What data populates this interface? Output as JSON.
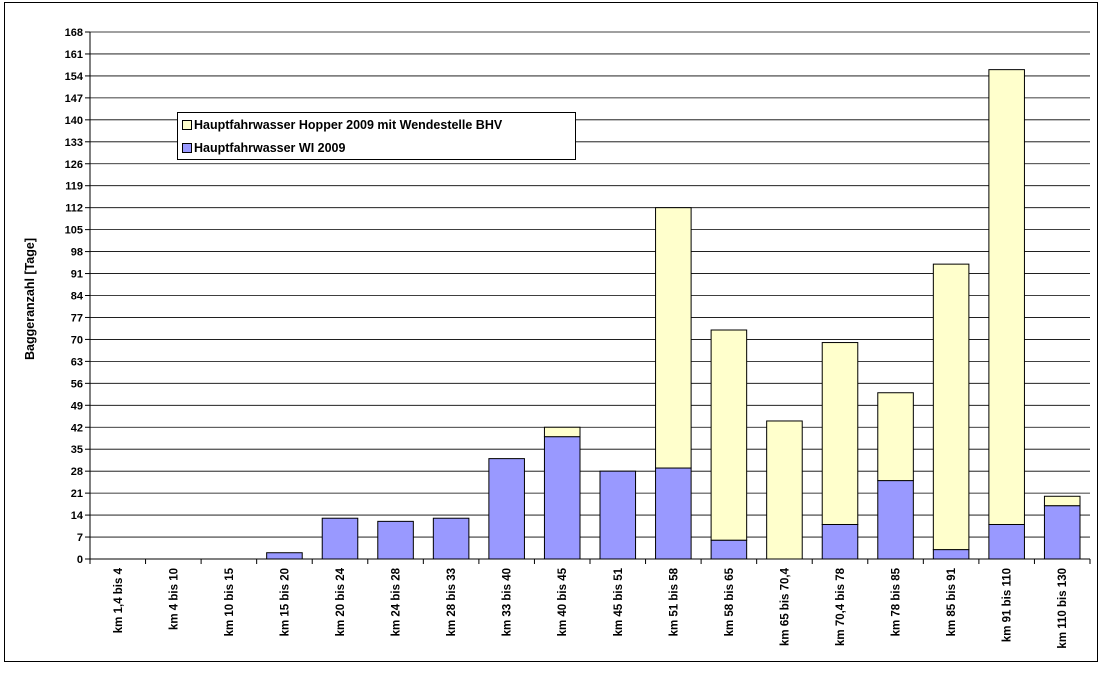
{
  "chart_data": {
    "type": "bar",
    "stacked": true,
    "title": "",
    "xlabel": "",
    "ylabel": "Baggeranzahl [Tage]",
    "ylim": [
      0,
      168
    ],
    "yticks": [
      0,
      7,
      14,
      21,
      28,
      35,
      42,
      49,
      56,
      63,
      70,
      77,
      84,
      91,
      98,
      105,
      112,
      119,
      126,
      133,
      140,
      147,
      154,
      161,
      168
    ],
    "grid": true,
    "legend_position": "top-left",
    "categories": [
      "km 1,4 bis 4",
      "km 4 bis 10",
      "km 10 bis 15",
      "km 15 bis 20",
      "km 20 bis 24",
      "km 24 bis 28",
      "km 28 bis 33",
      "km 33 bis 40",
      "km 40 bis 45",
      "km 45 bis 51",
      "km 51 bis 58",
      "km 58 bis 65",
      "km 65 bis 70,4",
      "km 70,4 bis 78",
      "km 78 bis 85",
      "km 85 bis 91",
      "km 91 bis 110",
      "km 110 bis 130"
    ],
    "series": [
      {
        "name": "Hauptfahrwasser WI 2009",
        "color": "#9999FF",
        "values": [
          0,
          0,
          0,
          2,
          13,
          12,
          13,
          32,
          39,
          28,
          29,
          6,
          0,
          11,
          25,
          3,
          11,
          17
        ]
      },
      {
        "name": "Hauptfahrwasser Hopper 2009 mit Wendestelle BHV",
        "color": "#FFFFCC",
        "values": [
          0,
          0,
          0,
          0,
          0,
          0,
          0,
          0,
          3,
          0,
          83,
          67,
          44,
          58,
          28,
          91,
          145,
          3
        ]
      }
    ],
    "legend_order": [
      "Hauptfahrwasser Hopper 2009 mit Wendestelle BHV",
      "Hauptfahrwasser WI 2009"
    ]
  }
}
